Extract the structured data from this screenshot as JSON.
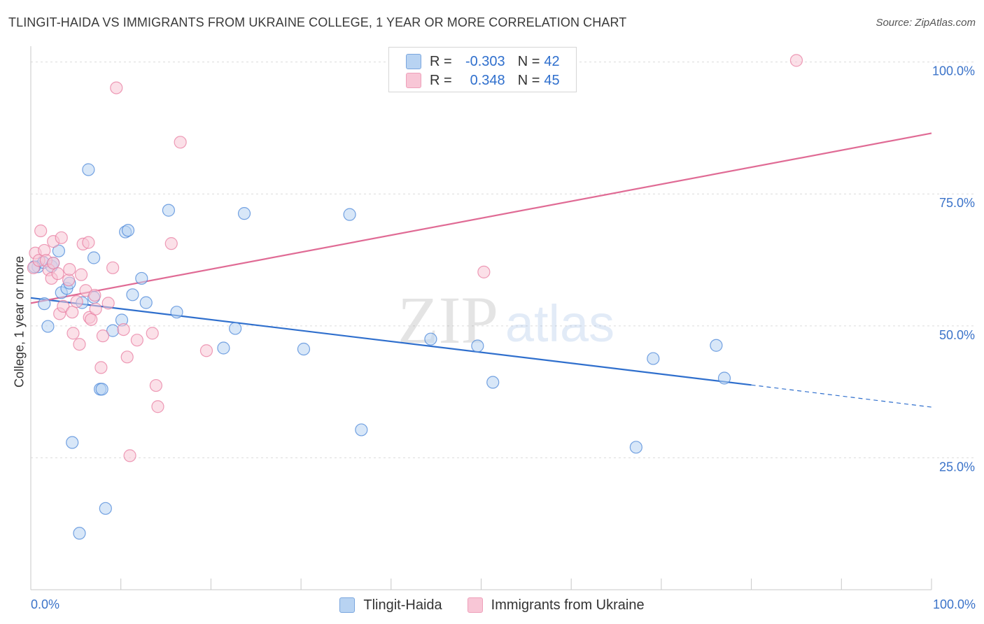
{
  "title": "TLINGIT-HAIDA VS IMMIGRANTS FROM UKRAINE COLLEGE, 1 YEAR OR MORE CORRELATION CHART",
  "source": "Source: ZipAtlas.com",
  "watermark": {
    "zip": "ZIP",
    "atlas": "atlas"
  },
  "colors": {
    "blue": "#4a86d8",
    "blue_fill": "#b8d3f2",
    "pink": "#e87ca0",
    "pink_fill": "#f8c6d6",
    "axis_text": "#3b73c9"
  },
  "legend": {
    "rows": [
      {
        "r_label": "R =",
        "r_value": "-0.303",
        "n_label": "N =",
        "n_value": "42"
      },
      {
        "r_label": "R =",
        "r_value": "0.348",
        "n_label": "N =",
        "n_value": "45"
      }
    ]
  },
  "chart_data": {
    "type": "scatter",
    "title": "TLINGIT-HAIDA VS IMMIGRANTS FROM UKRAINE COLLEGE, 1 YEAR OR MORE CORRELATION CHART",
    "xlabel": "",
    "ylabel": "College, 1 year or more",
    "xlim": [
      0,
      100
    ],
    "ylim": [
      0,
      103
    ],
    "x_tick_labels": [
      "0.0%",
      "100.0%"
    ],
    "y_ticks": [
      {
        "value": 25,
        "label": "25.0%"
      },
      {
        "value": 50,
        "label": "50.0%"
      },
      {
        "value": 75,
        "label": "75.0%"
      },
      {
        "value": 100,
        "label": "100.0%"
      }
    ],
    "legend_position": "bottom-center",
    "series": [
      {
        "name": "Tlingit-Haida",
        "color": "#4a86d8",
        "r": -0.303,
        "n": 42,
        "trend": {
          "x0": 0,
          "y0": 55.3,
          "x1": 80,
          "y1": 38.8,
          "dash_to": 100,
          "dash_y": 34.6
        },
        "points": [
          [
            0.8,
            61.2
          ],
          [
            1.4,
            62.0
          ],
          [
            1.5,
            54.2
          ],
          [
            1.9,
            49.9
          ],
          [
            2.3,
            61.3
          ],
          [
            2.5,
            61.9
          ],
          [
            3.1,
            64.2
          ],
          [
            3.4,
            56.3
          ],
          [
            4.0,
            57.1
          ],
          [
            4.3,
            58.1
          ],
          [
            4.6,
            27.9
          ],
          [
            5.4,
            10.7
          ],
          [
            5.7,
            54.4
          ],
          [
            6.4,
            79.6
          ],
          [
            7.0,
            55.4
          ],
          [
            7.0,
            62.9
          ],
          [
            7.7,
            38.0
          ],
          [
            7.9,
            38.0
          ],
          [
            8.3,
            15.4
          ],
          [
            9.1,
            49.1
          ],
          [
            10.1,
            51.1
          ],
          [
            10.5,
            67.8
          ],
          [
            10.8,
            68.1
          ],
          [
            11.3,
            55.9
          ],
          [
            12.3,
            59.0
          ],
          [
            12.8,
            54.4
          ],
          [
            15.3,
            71.9
          ],
          [
            16.2,
            52.6
          ],
          [
            21.4,
            45.8
          ],
          [
            22.7,
            49.5
          ],
          [
            23.7,
            71.3
          ],
          [
            30.3,
            45.6
          ],
          [
            35.4,
            71.1
          ],
          [
            36.7,
            30.3
          ],
          [
            44.4,
            47.5
          ],
          [
            49.6,
            46.2
          ],
          [
            51.3,
            39.3
          ],
          [
            67.2,
            27.0
          ],
          [
            69.1,
            43.8
          ],
          [
            76.1,
            46.3
          ],
          [
            77.0,
            40.1
          ],
          [
            0.4,
            61.2
          ]
        ]
      },
      {
        "name": "Immigrants from Ukraine",
        "color": "#e87ca0",
        "r": 0.348,
        "n": 45,
        "trend": {
          "x0": 0,
          "y0": 54.3,
          "x1": 100,
          "y1": 86.5
        },
        "points": [
          [
            0.3,
            61.0
          ],
          [
            0.5,
            63.8
          ],
          [
            0.9,
            62.4
          ],
          [
            1.1,
            68.0
          ],
          [
            1.5,
            64.3
          ],
          [
            1.7,
            62.4
          ],
          [
            2.0,
            60.6
          ],
          [
            2.3,
            59.0
          ],
          [
            2.5,
            61.9
          ],
          [
            2.5,
            66.0
          ],
          [
            3.0,
            59.9
          ],
          [
            3.2,
            52.3
          ],
          [
            3.4,
            66.7
          ],
          [
            3.6,
            53.7
          ],
          [
            4.2,
            58.7
          ],
          [
            4.3,
            60.7
          ],
          [
            4.6,
            52.6
          ],
          [
            4.7,
            48.6
          ],
          [
            5.1,
            54.6
          ],
          [
            5.4,
            46.5
          ],
          [
            5.6,
            59.7
          ],
          [
            5.8,
            65.5
          ],
          [
            6.1,
            56.7
          ],
          [
            6.4,
            65.8
          ],
          [
            6.5,
            51.6
          ],
          [
            6.7,
            51.2
          ],
          [
            7.1,
            55.8
          ],
          [
            7.8,
            42.1
          ],
          [
            8.0,
            48.1
          ],
          [
            8.6,
            54.3
          ],
          [
            9.1,
            61.0
          ],
          [
            9.5,
            95.1
          ],
          [
            10.3,
            49.3
          ],
          [
            10.7,
            44.1
          ],
          [
            11.0,
            25.4
          ],
          [
            11.8,
            47.3
          ],
          [
            13.5,
            48.6
          ],
          [
            13.9,
            38.7
          ],
          [
            14.1,
            34.7
          ],
          [
            15.6,
            65.6
          ],
          [
            16.6,
            84.8
          ],
          [
            19.5,
            45.3
          ],
          [
            50.3,
            60.2
          ],
          [
            85.0,
            100.3
          ],
          [
            7.2,
            53.2
          ]
        ]
      }
    ]
  }
}
